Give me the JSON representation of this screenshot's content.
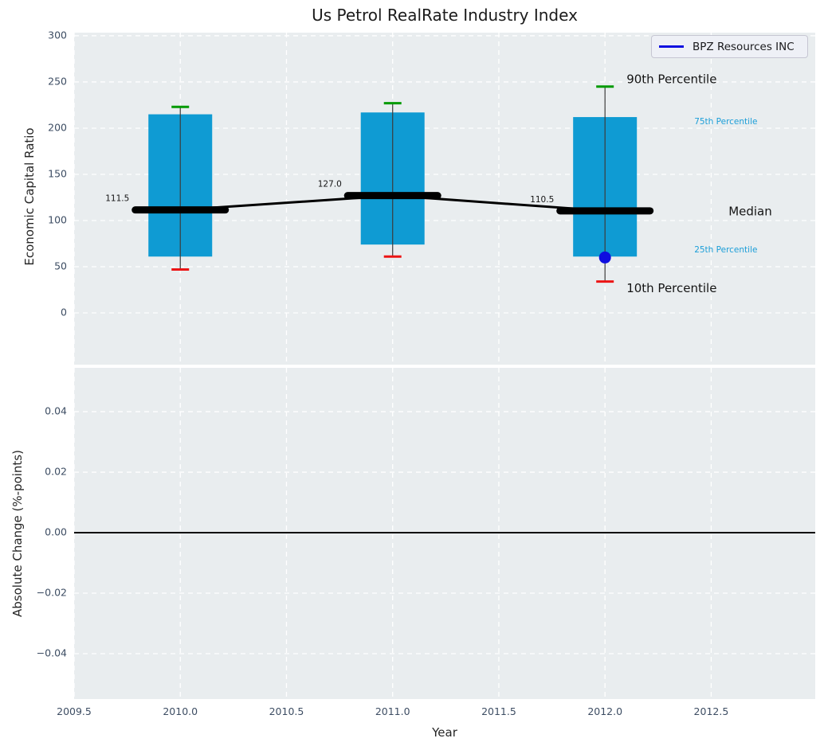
{
  "title": "Us Petrol RealRate Industry Index",
  "legend": {
    "label": "BPZ Resources INC"
  },
  "colors": {
    "plot_bg": "#e9edef",
    "grid": "#ffffff",
    "tick_label": "#3d4d63",
    "box_fill": "#0f9bd3",
    "whisker": "#3c3c3c",
    "cap_high": "#009a00",
    "cap_low": "#ec1414",
    "median_line": "#000000",
    "trend_line": "#000000",
    "company": "#0e0ee0",
    "percentile_small_label": "#1b9ed8",
    "text_dark": "#141414",
    "zero_line": "#000000"
  },
  "chart_data": [
    {
      "type": "boxplot",
      "title": "Us Petrol RealRate Industry Index",
      "ylabel": "Economic Capital Ratio",
      "ylim": [
        -56,
        303
      ],
      "yticks": [
        0,
        50,
        100,
        150,
        200,
        250,
        300
      ],
      "xlim": [
        2009.5,
        2013.0
      ],
      "grid": true,
      "boxes": [
        {
          "year": 2010,
          "p10": 47,
          "p25": 61,
          "median": 111.5,
          "p75": 215,
          "p90": 223
        },
        {
          "year": 2011,
          "p10": 61,
          "p25": 74,
          "median": 127.0,
          "p75": 217,
          "p90": 227
        },
        {
          "year": 2012,
          "p10": 34,
          "p25": 61,
          "median": 110.5,
          "p75": 212,
          "p90": 245
        }
      ],
      "median_trend": [
        [
          2010,
          111.5
        ],
        [
          2011,
          127.0
        ],
        [
          2012,
          110.5
        ]
      ],
      "median_value_labels": [
        "111.5",
        "127.0",
        "110.5"
      ],
      "company_point": {
        "name": "BPZ Resources INC",
        "year": 2012,
        "value": 60
      },
      "percentile_labels": [
        "90th Percentile",
        "75th Percentile",
        "Median",
        "25th Percentile",
        "10th Percentile"
      ],
      "legend_position": "upper right"
    },
    {
      "type": "line",
      "ylabel": "Absolute Change (%-points)",
      "xlabel": "Year",
      "ylim": [
        -0.055,
        0.0545
      ],
      "yticks": [
        0.04,
        0.02,
        0,
        -0.02,
        -0.04
      ],
      "xticks": [
        2009.5,
        2010,
        2010.5,
        2011,
        2011.5,
        2012,
        2012.5
      ],
      "xlim": [
        2009.5,
        2013.0
      ],
      "zero_line": 0.0,
      "series": [],
      "grid": true
    }
  ]
}
